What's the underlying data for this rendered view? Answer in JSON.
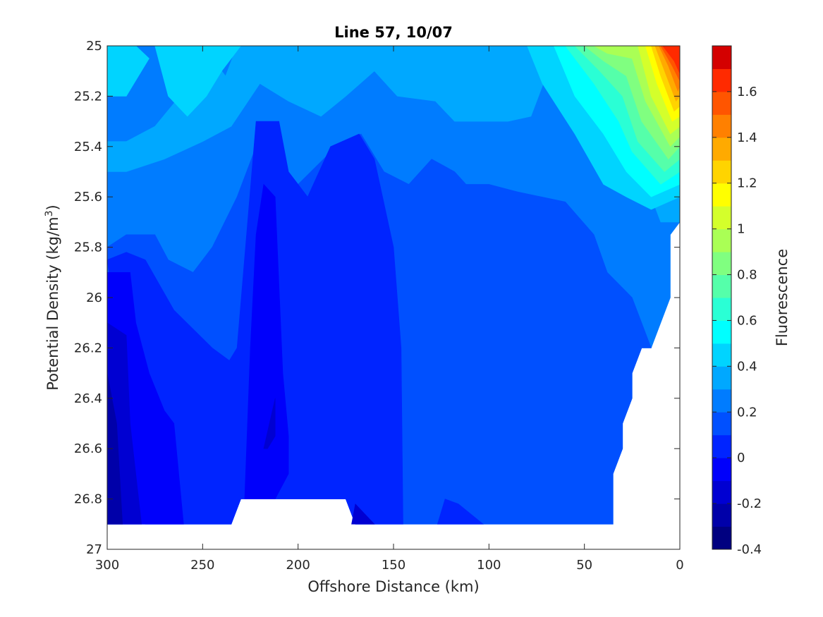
{
  "chart_data": {
    "type": "heatmap",
    "subtype": "filled-contour",
    "title": "Line 57, 10/07",
    "xlabel": "Offshore Distance (km)",
    "ylabel_main": "Potential Density (kg/m",
    "ylabel_sup": "3",
    "ylabel_close": ")",
    "colorbar_label": "Fluorescence",
    "xlim": [
      300,
      0
    ],
    "x_reversed": true,
    "ylim": [
      25,
      27
    ],
    "y_reversed": true,
    "x_ticks": [
      300,
      250,
      200,
      150,
      100,
      50,
      0
    ],
    "x_tick_labels": [
      "300",
      "250",
      "200",
      "150",
      "100",
      "50",
      "0"
    ],
    "y_ticks": [
      25,
      25.2,
      25.4,
      25.6,
      25.8,
      26,
      26.2,
      26.4,
      26.6,
      26.8,
      27
    ],
    "y_tick_labels": [
      "25",
      "25.2",
      "25.4",
      "25.6",
      "25.8",
      "26",
      "26.2",
      "26.4",
      "26.6",
      "26.8",
      "27"
    ],
    "colorbar_range": [
      -0.4,
      1.8
    ],
    "colorbar_ticks": [
      -0.4,
      -0.2,
      0,
      0.2,
      0.4,
      0.6,
      0.8,
      1,
      1.2,
      1.4,
      1.6
    ],
    "colorbar_tick_labels": [
      "-0.4",
      "-0.2",
      "0",
      "0.2",
      "0.4",
      "0.6",
      "0.8",
      "1",
      "1.2",
      "1.4",
      "1.6"
    ],
    "levels": [
      -0.4,
      -0.3,
      -0.2,
      -0.1,
      0,
      0.1,
      0.2,
      0.3,
      0.4,
      0.5,
      0.6,
      0.7,
      0.8,
      0.9,
      1.0,
      1.1,
      1.2,
      1.3,
      1.4,
      1.5,
      1.6,
      1.7,
      1.8
    ],
    "level_colors": [
      "#000080",
      "#0000a9",
      "#0000d2",
      "#0000fb",
      "#0024ff",
      "#0050ff",
      "#007cff",
      "#00a8ff",
      "#00d4ff",
      "#00ffff",
      "#2affd5",
      "#55ffaa",
      "#80ff80",
      "#aaff55",
      "#d4ff2b",
      "#ffff00",
      "#ffd400",
      "#ffaa00",
      "#ff8000",
      "#ff5500",
      "#ff2a00",
      "#d40000",
      "#a80000",
      "#800000"
    ],
    "grid": false,
    "colorbar_position": "right",
    "data_regions": [
      {
        "level": 0.2,
        "polygon": [
          [
            300,
            25
          ],
          [
            0,
            25
          ],
          [
            0,
            25.7
          ],
          [
            5,
            25.75
          ],
          [
            5,
            26
          ],
          [
            15,
            26.2
          ],
          [
            20,
            26.2
          ],
          [
            25,
            26.3
          ],
          [
            25,
            26.4
          ],
          [
            30,
            26.5
          ],
          [
            30,
            26.6
          ],
          [
            35,
            26.7
          ],
          [
            35,
            26.9
          ],
          [
            170,
            26.9
          ],
          [
            175,
            26.8
          ],
          [
            230,
            26.8
          ],
          [
            235,
            26.9
          ],
          [
            300,
            26.9
          ]
        ]
      },
      {
        "level": 0.1,
        "polygon": [
          [
            300,
            25.8
          ],
          [
            290,
            25.75
          ],
          [
            275,
            25.75
          ],
          [
            268,
            25.85
          ],
          [
            255,
            25.9
          ],
          [
            245,
            25.8
          ],
          [
            232,
            25.6
          ],
          [
            222,
            25.4
          ],
          [
            200,
            25.55
          ],
          [
            180,
            25.4
          ],
          [
            167,
            25.35
          ],
          [
            155,
            25.5
          ],
          [
            142,
            25.55
          ],
          [
            130,
            25.45
          ],
          [
            118,
            25.5
          ],
          [
            112,
            25.55
          ],
          [
            100,
            25.55
          ],
          [
            85,
            25.58
          ],
          [
            60,
            25.62
          ],
          [
            45,
            25.75
          ],
          [
            38,
            25.9
          ],
          [
            25,
            26
          ],
          [
            20,
            26.1
          ],
          [
            15,
            26.2
          ],
          [
            20,
            26.2
          ],
          [
            25,
            26.3
          ],
          [
            25,
            26.4
          ],
          [
            30,
            26.5
          ],
          [
            30,
            26.6
          ],
          [
            35,
            26.7
          ],
          [
            35,
            26.9
          ],
          [
            170,
            26.9
          ],
          [
            175,
            26.8
          ],
          [
            230,
            26.8
          ],
          [
            235,
            26.9
          ],
          [
            300,
            26.9
          ]
        ]
      },
      {
        "level": 0.0,
        "polygon": [
          [
            300,
            25.85
          ],
          [
            290,
            25.82
          ],
          [
            280,
            25.85
          ],
          [
            265,
            26.05
          ],
          [
            245,
            26.2
          ],
          [
            236,
            26.25
          ],
          [
            232,
            26.2
          ],
          [
            222,
            25.3
          ],
          [
            210,
            25.3
          ],
          [
            205,
            25.5
          ],
          [
            195,
            25.6
          ],
          [
            183,
            25.4
          ],
          [
            168,
            25.35
          ],
          [
            160,
            25.45
          ],
          [
            150,
            25.8
          ],
          [
            146,
            26.2
          ],
          [
            145,
            26.9
          ],
          [
            170,
            26.9
          ],
          [
            175,
            26.8
          ],
          [
            230,
            26.8
          ],
          [
            235,
            26.9
          ],
          [
            280,
            26.9
          ]
        ]
      },
      {
        "level": 0.0,
        "polygon": [
          [
            127,
            26.9
          ],
          [
            123,
            26.8
          ],
          [
            116,
            26.82
          ],
          [
            103,
            26.9
          ]
        ]
      },
      {
        "level": -0.1,
        "polygon": [
          [
            300,
            25.9
          ],
          [
            288,
            25.9
          ],
          [
            285,
            26.1
          ],
          [
            278,
            26.3
          ],
          [
            270,
            26.45
          ],
          [
            265,
            26.5
          ],
          [
            260,
            26.9
          ],
          [
            300,
            26.9
          ]
        ]
      },
      {
        "level": -0.1,
        "polygon": [
          [
            228,
            26.8
          ],
          [
            225,
            26.2
          ],
          [
            222,
            25.75
          ],
          [
            218,
            25.55
          ],
          [
            212,
            25.6
          ],
          [
            208,
            26.3
          ],
          [
            205,
            26.55
          ],
          [
            205,
            26.7
          ],
          [
            212,
            26.8
          ]
        ]
      },
      {
        "level": -0.2,
        "polygon": [
          [
            300,
            26.1
          ],
          [
            290,
            26.15
          ],
          [
            288,
            26.5
          ],
          [
            282,
            26.9
          ],
          [
            300,
            26.9
          ]
        ]
      },
      {
        "level": -0.2,
        "polygon": [
          [
            218,
            26.6
          ],
          [
            212,
            26.4
          ],
          [
            212,
            26.55
          ],
          [
            216,
            26.6
          ]
        ]
      },
      {
        "level": -0.2,
        "polygon": [
          [
            170,
            26.82
          ],
          [
            160,
            26.9
          ],
          [
            172,
            26.9
          ]
        ]
      },
      {
        "level": -0.3,
        "polygon": [
          [
            300,
            26.3
          ],
          [
            295,
            26.5
          ],
          [
            292,
            26.9
          ],
          [
            300,
            26.9
          ]
        ]
      },
      {
        "level": 0.3,
        "polygon": [
          [
            300,
            25.38
          ],
          [
            290,
            25.38
          ],
          [
            275,
            25.32
          ],
          [
            262,
            25.2
          ],
          [
            255,
            25.1
          ],
          [
            245,
            25.05
          ],
          [
            238,
            25.12
          ],
          [
            232,
            25
          ],
          [
            55,
            25
          ],
          [
            70,
            25.12
          ],
          [
            78,
            25.28
          ],
          [
            90,
            25.3
          ],
          [
            118,
            25.3
          ],
          [
            128,
            25.22
          ],
          [
            148,
            25.2
          ],
          [
            160,
            25.1
          ],
          [
            175,
            25.2
          ],
          [
            188,
            25.28
          ],
          [
            205,
            25.22
          ],
          [
            220,
            25.15
          ],
          [
            235,
            25.32
          ],
          [
            250,
            25.38
          ],
          [
            270,
            25.45
          ],
          [
            290,
            25.5
          ],
          [
            300,
            25.5
          ]
        ]
      },
      {
        "level": 0.3,
        "polygon": [
          [
            55,
            25
          ],
          [
            35,
            25.1
          ],
          [
            25,
            25.3
          ],
          [
            20,
            25.5
          ],
          [
            10,
            25.7
          ],
          [
            0,
            25.7
          ],
          [
            0,
            25
          ],
          [
            5,
            25
          ]
        ]
      },
      {
        "level": 0.4,
        "polygon": [
          [
            300,
            25
          ],
          [
            300,
            25.2
          ],
          [
            290,
            25.2
          ],
          [
            278,
            25.05
          ],
          [
            285,
            25
          ],
          [
            275,
            25
          ],
          [
            268,
            25.2
          ],
          [
            258,
            25.28
          ],
          [
            248,
            25.2
          ],
          [
            240,
            25.1
          ],
          [
            230,
            25
          ]
        ]
      },
      {
        "level": 0.4,
        "polygon": [
          [
            80,
            25
          ],
          [
            72,
            25.15
          ],
          [
            55,
            25.35
          ],
          [
            40,
            25.55
          ],
          [
            28,
            25.6
          ],
          [
            15,
            25.65
          ],
          [
            0,
            25.6
          ],
          [
            0,
            25
          ]
        ]
      },
      {
        "level": 0.5,
        "polygon": [
          [
            66,
            25
          ],
          [
            55,
            25.2
          ],
          [
            40,
            25.35
          ],
          [
            28,
            25.5
          ],
          [
            15,
            25.6
          ],
          [
            0,
            25.55
          ],
          [
            0,
            25
          ]
        ]
      },
      {
        "level": 0.6,
        "polygon": [
          [
            60,
            25
          ],
          [
            45,
            25.15
          ],
          [
            32,
            25.3
          ],
          [
            25,
            25.42
          ],
          [
            10,
            25.55
          ],
          [
            0,
            25.5
          ],
          [
            0,
            25
          ]
        ]
      },
      {
        "level": 0.7,
        "polygon": [
          [
            55,
            25
          ],
          [
            42,
            25.1
          ],
          [
            30,
            25.2
          ],
          [
            22,
            25.38
          ],
          [
            8,
            25.5
          ],
          [
            0,
            25.45
          ],
          [
            0,
            25
          ]
        ]
      },
      {
        "level": 0.8,
        "polygon": [
          [
            50,
            25
          ],
          [
            40,
            25.06
          ],
          [
            28,
            25.12
          ],
          [
            20,
            25.3
          ],
          [
            6,
            25.45
          ],
          [
            0,
            25.4
          ],
          [
            0,
            25
          ]
        ]
      },
      {
        "level": 0.9,
        "polygon": [
          [
            45,
            25
          ],
          [
            38,
            25.03
          ],
          [
            25,
            25.05
          ],
          [
            18,
            25.22
          ],
          [
            5,
            25.4
          ],
          [
            0,
            25.36
          ],
          [
            0,
            25
          ]
        ]
      },
      {
        "level": 1.0,
        "polygon": [
          [
            22,
            25
          ],
          [
            15,
            25.2
          ],
          [
            5,
            25.35
          ],
          [
            0,
            25.32
          ],
          [
            0,
            25
          ]
        ]
      },
      {
        "level": 1.1,
        "polygon": [
          [
            18,
            25
          ],
          [
            12,
            25.15
          ],
          [
            4,
            25.3
          ],
          [
            0,
            25.28
          ],
          [
            0,
            25
          ]
        ]
      },
      {
        "level": 1.2,
        "polygon": [
          [
            15,
            25
          ],
          [
            10,
            25.12
          ],
          [
            3,
            25.26
          ],
          [
            0,
            25.24
          ],
          [
            0,
            25
          ]
        ]
      },
      {
        "level": 1.3,
        "polygon": [
          [
            13,
            25
          ],
          [
            8,
            25.1
          ],
          [
            2,
            25.22
          ],
          [
            0,
            25.2
          ],
          [
            0,
            25
          ]
        ]
      },
      {
        "level": 1.4,
        "polygon": [
          [
            11,
            25
          ],
          [
            6,
            25.08
          ],
          [
            1,
            25.18
          ],
          [
            0,
            25.16
          ],
          [
            0,
            25
          ]
        ]
      },
      {
        "level": 1.5,
        "polygon": [
          [
            10,
            25
          ],
          [
            4,
            25.08
          ],
          [
            0,
            25.14
          ],
          [
            0,
            25
          ]
        ]
      },
      {
        "level": 1.6,
        "polygon": [
          [
            9,
            25
          ],
          [
            3,
            25.06
          ],
          [
            0,
            25.11
          ],
          [
            0,
            25
          ]
        ]
      }
    ]
  }
}
